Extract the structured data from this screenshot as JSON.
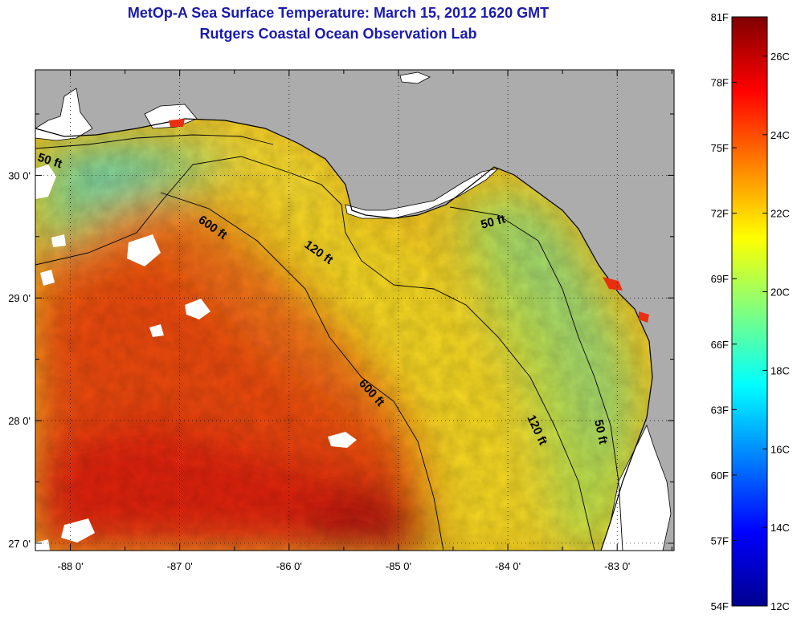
{
  "title": "MetOp-A Sea Surface Temperature:  March 15, 2012 1620 GMT",
  "subtitle": "Rutgers Coastal Ocean Observation Lab",
  "map": {
    "lon_range": [
      -88.32,
      -82.48
    ],
    "lat_range": [
      26.94,
      30.86
    ],
    "lon_ticks": [
      {
        "value": -88,
        "label": "-88 0'"
      },
      {
        "value": -87,
        "label": "-87 0'"
      },
      {
        "value": -86,
        "label": "-86 0'"
      },
      {
        "value": -85,
        "label": "-85 0'"
      },
      {
        "value": -84,
        "label": "-84 0'"
      },
      {
        "value": -83,
        "label": "-83 0'"
      }
    ],
    "lat_ticks": [
      {
        "value": 30,
        "label": "30 0'"
      },
      {
        "value": 29,
        "label": "29 0'"
      },
      {
        "value": 28,
        "label": "28 0'"
      },
      {
        "value": 27,
        "label": "27 0'"
      }
    ],
    "contour_labels": [
      {
        "text": "50 ft",
        "lon": -88.05,
        "lat": 30.12
      },
      {
        "text": "600 ft",
        "lon": -86.64,
        "lat": 29.62
      },
      {
        "text": "120 ft",
        "lon": -85.77,
        "lat": 29.42
      },
      {
        "text": "50 ft",
        "lon": -84.02,
        "lat": 29.62
      },
      {
        "text": "600 ft",
        "lon": -85.12,
        "lat": 28.22
      },
      {
        "text": "120 ft",
        "lon": -83.68,
        "lat": 27.92
      },
      {
        "text": "50 ft",
        "lon": -83.11,
        "lat": 27.82
      }
    ],
    "colors": {
      "land": "#acacac",
      "cloud": "#ffffff",
      "coastline": "#000000"
    }
  },
  "colorbar": {
    "f_labels": [
      "81F",
      "78F",
      "75F",
      "72F",
      "69F",
      "66F",
      "63F",
      "60F",
      "57F",
      "54F"
    ],
    "c_labels": [
      "26C",
      "24C",
      "22C",
      "20C",
      "18C",
      "16C",
      "14C",
      "12C"
    ],
    "f_range": [
      54,
      81
    ],
    "c_range": [
      12,
      27
    ],
    "colormap": "jet"
  }
}
